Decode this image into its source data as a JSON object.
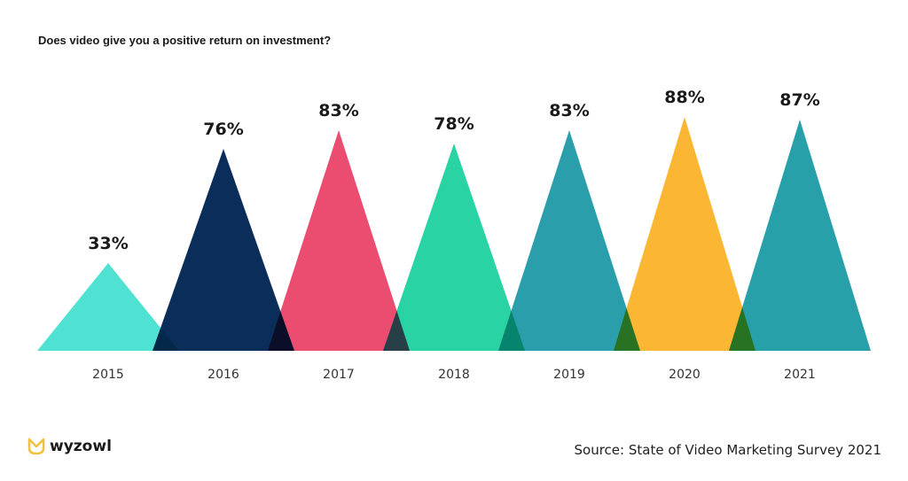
{
  "chart_data": {
    "type": "bar",
    "title": "Does video give you a positive return on investment?",
    "categories": [
      "2015",
      "2016",
      "2017",
      "2018",
      "2019",
      "2020",
      "2021"
    ],
    "values": [
      33,
      76,
      83,
      78,
      83,
      88,
      87
    ],
    "labels": [
      "33%",
      "76%",
      "83%",
      "78%",
      "83%",
      "88%",
      "87%"
    ],
    "colors": [
      "#4fe2d2",
      "#0b2d5a",
      "#ea4d70",
      "#2ad3a3",
      "#2a9fab",
      "#fbb733",
      "#27a0aa"
    ],
    "unit": "%",
    "ylim": [
      0,
      100
    ],
    "xlabel": "",
    "ylabel": "",
    "grid": false
  },
  "brand": {
    "name": "wyzowl",
    "color": "#f0c23b"
  },
  "source": "Source: State of Video Marketing Survey 2021"
}
